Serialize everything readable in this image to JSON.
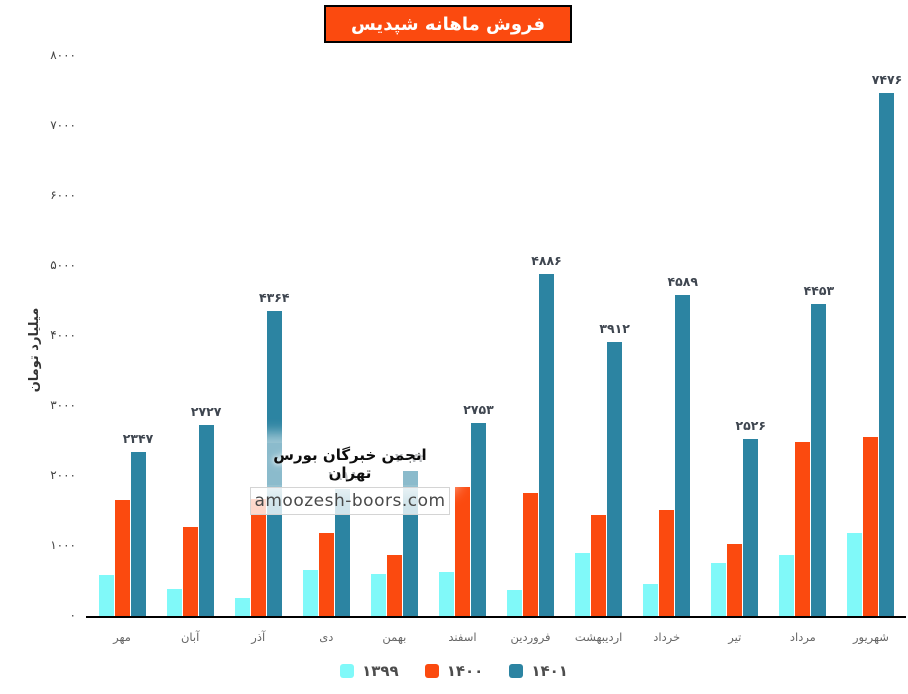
{
  "title": "فروش ماهانه شپدیس",
  "y_axis_label": "میلیارد تومان",
  "watermark": {
    "line1": "انجمن خبرگان بورس تهران",
    "line2": "amoozesh-boors.com"
  },
  "colors": {
    "series_1399": "#80f9f9",
    "series_1400": "#fb4a0f",
    "series_1401": "#2c84a2",
    "title_bg": "#fb4a0f",
    "title_text": "#ffffff",
    "axis_line": "#000000",
    "value_label": "#3f4650"
  },
  "chart_data": {
    "type": "bar",
    "title": "فروش ماهانه شپدیس",
    "ylabel": "میلیارد تومان",
    "xlabel": "",
    "categories": [
      "مهر",
      "آبان",
      "آذر",
      "دی",
      "بهمن",
      "اسفند",
      "فروردین",
      "اردیبهشت",
      "خرداد",
      "تیر",
      "مرداد",
      "شهریور"
    ],
    "series": [
      {
        "name": "۱۳۹۹",
        "name_latin": "1399",
        "color": "#80f9f9",
        "values": [
          590,
          390,
          260,
          660,
          595,
          625,
          370,
          895,
          460,
          760,
          870,
          1190
        ],
        "values_estimated": true
      },
      {
        "name": "۱۴۰۰",
        "name_latin": "1400",
        "color": "#fb4a0f",
        "values": [
          1660,
          1270,
          1670,
          1180,
          870,
          1850,
          1760,
          1440,
          1515,
          1025,
          2490,
          2555
        ],
        "values_estimated": true
      },
      {
        "name": "۱۴۰۱",
        "name_latin": "1401",
        "color": "#2c84a2",
        "values": [
          2347,
          2727,
          4364,
          1818,
          2072,
          2753,
          4886,
          3912,
          4589,
          2526,
          4453,
          7476
        ],
        "value_labels": [
          "۲۳۴۷",
          "۲۷۲۷",
          "۴۳۶۴",
          "۱۸۱۸",
          "۲۰۷۲",
          "۲۷۵۳",
          "۴۸۸۶",
          "۳۹۱۲",
          "۴۵۸۹",
          "۲۵۲۶",
          "۴۴۵۳",
          "۷۴۷۶"
        ],
        "values_estimated": false
      }
    ],
    "ylim": [
      0,
      8000
    ],
    "y_ticks": [
      0,
      1000,
      2000,
      3000,
      4000,
      5000,
      6000,
      7000,
      8000
    ],
    "y_tick_labels": [
      "۰",
      "۱۰۰۰",
      "۲۰۰۰",
      "۳۰۰۰",
      "۴۰۰۰",
      "۵۰۰۰",
      "۶۰۰۰",
      "۷۰۰۰",
      "۸۰۰۰"
    ],
    "grid": false,
    "legend_position": "bottom",
    "value_labels_on_series": "۱۴۰۱"
  }
}
